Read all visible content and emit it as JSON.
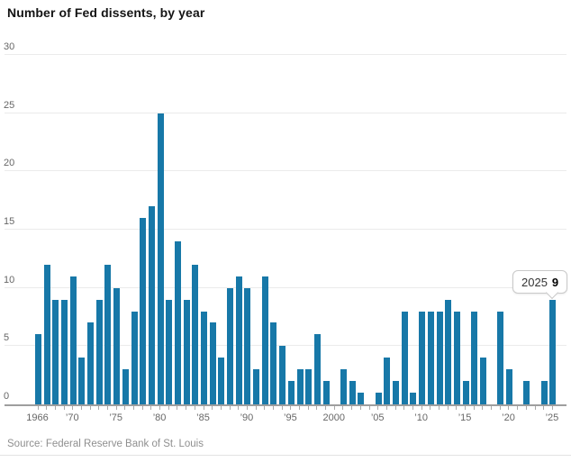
{
  "title": "Number of Fed dissents, by year",
  "source": "Source: Federal Reserve Bank of St. Louis",
  "tooltip": {
    "year": "2025",
    "value": "9"
  },
  "colors": {
    "bar": "#1778a8",
    "gridline": "#ebebeb",
    "axis": "#9e9e9e",
    "axis_text": "#676767",
    "title_text": "#141414",
    "source_text": "#8f8f8f",
    "tooltip_border": "#c9c9c9"
  },
  "chart_data": {
    "type": "bar",
    "title": "Number of Fed dissents, by year",
    "xlabel": "",
    "ylabel": "",
    "ylim": [
      0,
      30
    ],
    "yticks": [
      0,
      5,
      10,
      15,
      20,
      25,
      30
    ],
    "grid": "horizontal",
    "legend": "none",
    "x": [
      1966,
      1967,
      1968,
      1969,
      1970,
      1971,
      1972,
      1973,
      1974,
      1975,
      1976,
      1977,
      1978,
      1979,
      1980,
      1981,
      1982,
      1983,
      1984,
      1985,
      1986,
      1987,
      1988,
      1989,
      1990,
      1991,
      1992,
      1993,
      1994,
      1995,
      1996,
      1997,
      1998,
      1999,
      2000,
      2001,
      2002,
      2003,
      2004,
      2005,
      2006,
      2007,
      2008,
      2009,
      2010,
      2011,
      2012,
      2013,
      2014,
      2015,
      2016,
      2017,
      2018,
      2019,
      2020,
      2021,
      2022,
      2023,
      2024,
      2025
    ],
    "values": [
      6,
      12,
      9,
      9,
      11,
      4,
      7,
      9,
      12,
      10,
      3,
      8,
      16,
      17,
      25,
      9,
      14,
      9,
      12,
      8,
      7,
      4,
      10,
      11,
      10,
      3,
      11,
      7,
      5,
      2,
      3,
      3,
      6,
      2,
      0,
      3,
      2,
      1,
      0,
      1,
      4,
      2,
      8,
      1,
      8,
      8,
      8,
      9,
      8,
      2,
      8,
      4,
      0,
      8,
      3,
      0,
      2,
      0,
      2,
      9
    ],
    "xtick_labels": [
      {
        "year": 1966,
        "label": "1966"
      },
      {
        "year": 1970,
        "label": "’70"
      },
      {
        "year": 1975,
        "label": "’75"
      },
      {
        "year": 1980,
        "label": "’80"
      },
      {
        "year": 1985,
        "label": "’85"
      },
      {
        "year": 1990,
        "label": "’90"
      },
      {
        "year": 1995,
        "label": "’95"
      },
      {
        "year": 2000,
        "label": "2000"
      },
      {
        "year": 2005,
        "label": "’05"
      },
      {
        "year": 2010,
        "label": "’10"
      },
      {
        "year": 2015,
        "label": "’15"
      },
      {
        "year": 2020,
        "label": "’20"
      },
      {
        "year": 2025,
        "label": "’25"
      }
    ],
    "annotation": {
      "year": "2025",
      "value": "9"
    }
  }
}
